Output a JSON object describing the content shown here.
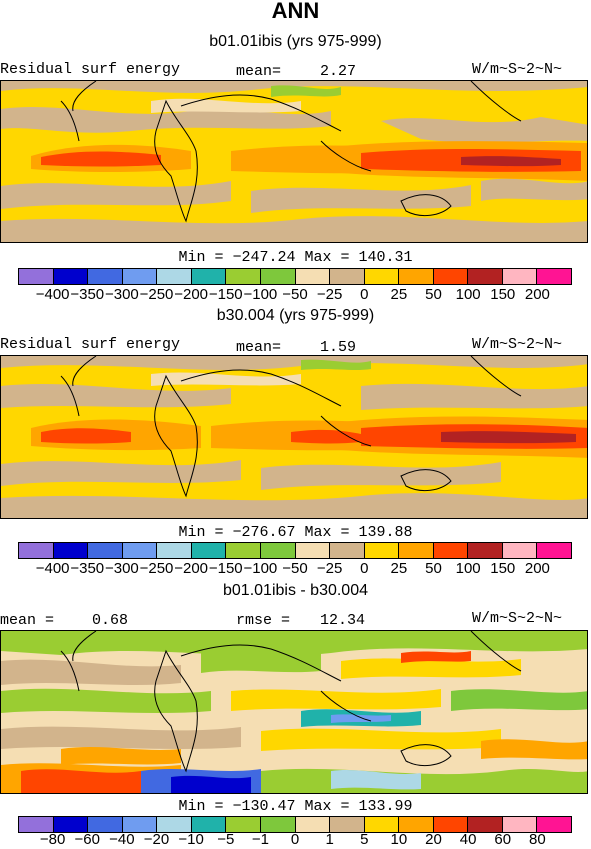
{
  "title": "ANN",
  "panel1": {
    "subtitle": "b01.01ibis (yrs 975-999)",
    "left_label": "Residual surf energy",
    "mean_label": "mean=",
    "mean_value": "2.27",
    "units": "W/m~S~2~N~",
    "minmax": "Min = −247.24 Max = 140.31"
  },
  "panel2": {
    "subtitle": "b30.004 (yrs 975-999)",
    "left_label": "Residual surf energy",
    "mean_label": "mean=",
    "mean_value": "1.59",
    "units": "W/m~S~2~N~",
    "minmax": "Min = −276.67 Max = 139.88"
  },
  "panel3": {
    "subtitle": "b01.01ibis - b30.004",
    "mean_label": "mean =",
    "mean_value": "0.68",
    "rmse_label": "rmse =",
    "rmse_value": "12.34",
    "units": "W/m~S~2~N~",
    "minmax": "Min = −130.47 Max = 133.99"
  },
  "colorbar_colors": [
    "#9370db",
    "#0000cd",
    "#4169e1",
    "#6f9cf0",
    "#add8e6",
    "#20b2aa",
    "#9acd32",
    "#7ec83c",
    "#f5deb3",
    "#d2b48c",
    "#ffd700",
    "#ffa500",
    "#ff4500",
    "#b22222",
    "#ffb6c1",
    "#ff1493"
  ],
  "colorbar_ticks_main": [
    "−400",
    "−350",
    "−300",
    "−250",
    "−200",
    "−150",
    "−100",
    "−50",
    "−25",
    "0",
    "25",
    "50",
    "100",
    "150",
    "200"
  ],
  "colorbar_ticks_diff": [
    "−80",
    "−60",
    "−40",
    "−20",
    "−10",
    "−5",
    "−1",
    "0",
    "1",
    "5",
    "10",
    "20",
    "40",
    "60",
    "80"
  ]
}
